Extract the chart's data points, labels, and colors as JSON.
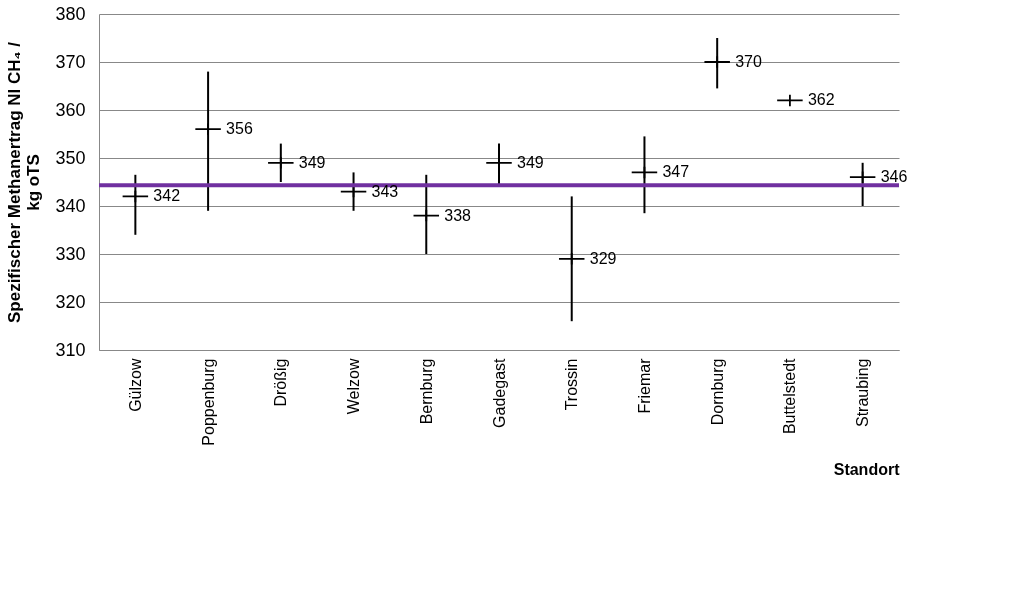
{
  "chart_data": {
    "type": "scatter",
    "xlabel": "Standort",
    "ylabel": "Spezifischer Methanertrag Nl CH₄ /\nkg oTS",
    "categories": [
      "Gülzow",
      "Poppenburg",
      "Drößig",
      "Welzow",
      "Bernburg",
      "Gadegast",
      "Trossin",
      "Friemar",
      "Dornburg",
      "Buttelstedt",
      "Straubing"
    ],
    "values": [
      342,
      356,
      349,
      343,
      338,
      349,
      329,
      347,
      370,
      362,
      346
    ],
    "errors": [
      [
        334,
        346.5
      ],
      [
        339,
        368
      ],
      [
        345,
        353
      ],
      [
        339,
        347
      ],
      [
        330,
        346.5
      ],
      [
        344.5,
        353
      ],
      [
        316,
        342
      ],
      [
        338.5,
        354.5
      ],
      [
        364.5,
        375
      ],
      null,
      [
        340,
        349
      ]
    ],
    "color": "#000000",
    "data_labels": true,
    "ylim": [
      310,
      380
    ],
    "yticks": [
      310,
      320,
      330,
      340,
      350,
      360,
      370,
      380
    ],
    "grid": "y",
    "marker": "cross",
    "ref_lines": [
      {
        "axis": "y",
        "value": 344.3,
        "color": "#7030a0"
      }
    ]
  }
}
